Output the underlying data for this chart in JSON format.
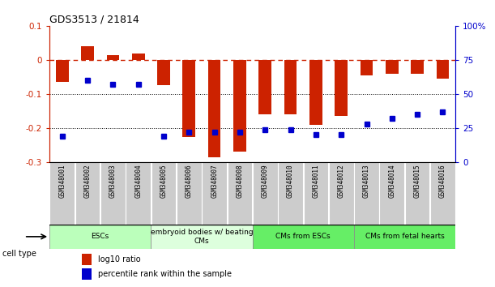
{
  "title": "GDS3513 / 21814",
  "samples": [
    "GSM348001",
    "GSM348002",
    "GSM348003",
    "GSM348004",
    "GSM348005",
    "GSM348006",
    "GSM348007",
    "GSM348008",
    "GSM348009",
    "GSM348010",
    "GSM348011",
    "GSM348012",
    "GSM348013",
    "GSM348014",
    "GSM348015",
    "GSM348016"
  ],
  "log10_ratio": [
    -0.065,
    0.04,
    0.015,
    0.02,
    -0.075,
    -0.225,
    -0.285,
    -0.27,
    -0.16,
    -0.16,
    -0.19,
    -0.165,
    -0.045,
    -0.04,
    -0.04,
    -0.055
  ],
  "percentile_rank": [
    19,
    60,
    57,
    57,
    19,
    22,
    22,
    22,
    24,
    24,
    20,
    20,
    28,
    32,
    35,
    37
  ],
  "ylim_left": [
    -0.3,
    0.1
  ],
  "ylim_right": [
    0,
    100
  ],
  "yticks_left": [
    -0.3,
    -0.2,
    -0.1,
    0.0,
    0.1
  ],
  "yticks_right": [
    0,
    25,
    50,
    75,
    100
  ],
  "ytick_labels_right": [
    "0",
    "25",
    "50",
    "75",
    "100%"
  ],
  "hline_y": 0.0,
  "dotted_lines": [
    -0.1,
    -0.2
  ],
  "bar_color": "#CC2200",
  "dot_color": "#0000CC",
  "cell_type_groups": [
    {
      "label": "ESCs",
      "start": 0,
      "end": 3,
      "color": "#BBFFBB"
    },
    {
      "label": "embryoid bodies w/ beating\nCMs",
      "start": 4,
      "end": 7,
      "color": "#DDFFDD"
    },
    {
      "label": "CMs from ESCs",
      "start": 8,
      "end": 11,
      "color": "#66EE66"
    },
    {
      "label": "CMs from fetal hearts",
      "start": 12,
      "end": 15,
      "color": "#66EE66"
    }
  ],
  "legend_items": [
    {
      "label": "log10 ratio",
      "color": "#CC2200"
    },
    {
      "label": "percentile rank within the sample",
      "color": "#0000CC"
    }
  ],
  "cell_type_label": "cell type",
  "background_color": "#ffffff",
  "plot_bg": "#ffffff",
  "xtick_bg": "#CCCCCC",
  "xtick_border": "#ffffff"
}
